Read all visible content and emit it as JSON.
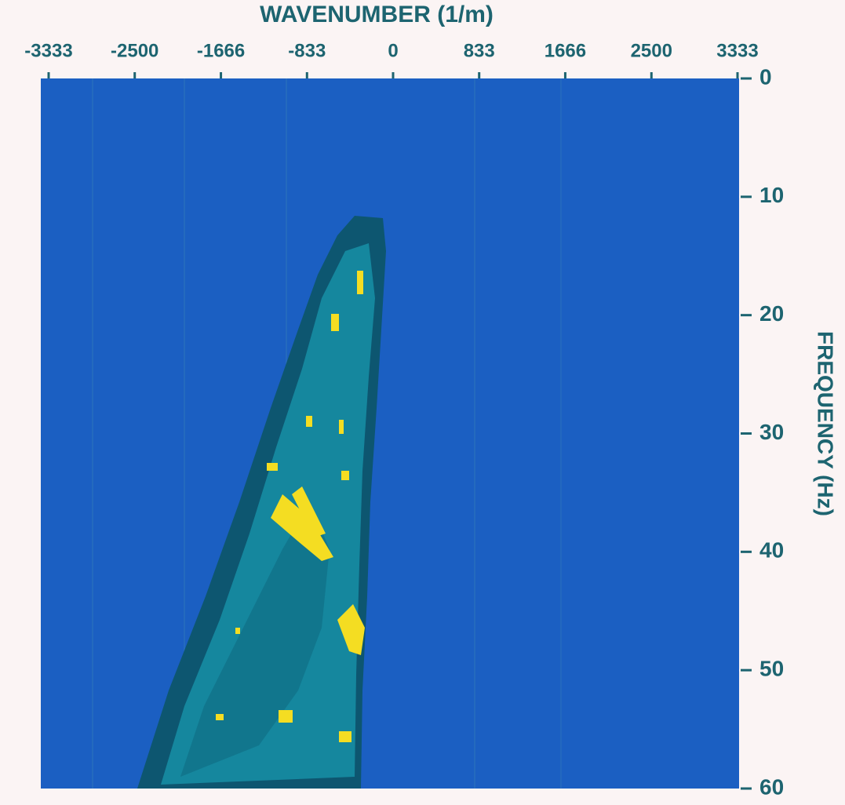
{
  "chart_data": {
    "type": "heatmap",
    "title": "WAVENUMBER (1/m)",
    "y_label": "FREQUENCY (Hz)",
    "xlim": [
      -3333,
      3333
    ],
    "xticks": [
      -3333,
      -2500,
      -1666,
      -833,
      0,
      833,
      1666,
      2500,
      3333
    ],
    "ylim": [
      0,
      60
    ],
    "yticks": [
      0,
      10,
      20,
      30,
      40,
      50,
      60
    ],
    "y_inverted": true,
    "x_axis_position": "top",
    "y_axis_position": "right",
    "background_color": "#1b5fc2"
  }
}
